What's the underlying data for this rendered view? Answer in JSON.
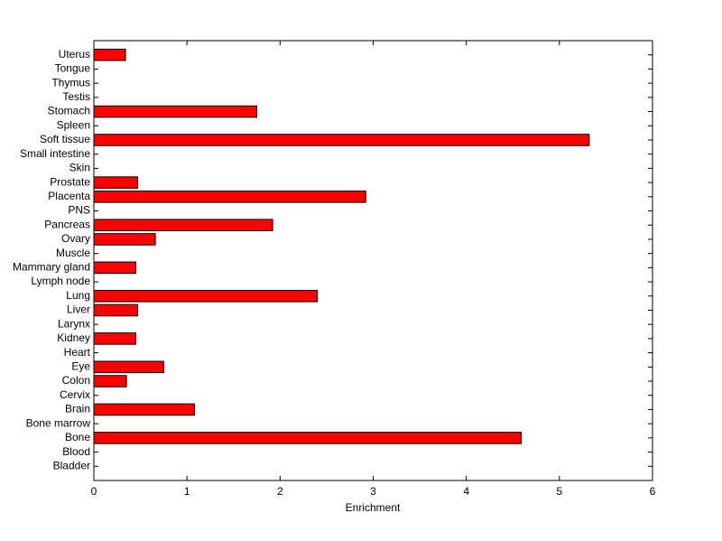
{
  "chart_data": {
    "type": "barh",
    "xlabel": "Enrichment",
    "categories": [
      "Bladder",
      "Blood",
      "Bone",
      "Bone marrow",
      "Brain",
      "Cervix",
      "Colon",
      "Eye",
      "Heart",
      "Kidney",
      "Larynx",
      "Liver",
      "Lung",
      "Lymph node",
      "Mammary gland",
      "Muscle",
      "Ovary",
      "Pancreas",
      "PNS",
      "Placenta",
      "Prostate",
      "Skin",
      "Small intestine",
      "Soft tissue",
      "Spleen",
      "Stomach",
      "Testis",
      "Thymus",
      "Tongue",
      "Uterus"
    ],
    "values": [
      0,
      0,
      4.59,
      0,
      1.08,
      0,
      0.35,
      0.75,
      0,
      0.45,
      0,
      0.47,
      2.4,
      0,
      0.45,
      0,
      0.66,
      1.92,
      0,
      2.92,
      0.47,
      0,
      0,
      5.32,
      0,
      1.75,
      0,
      0,
      0,
      0.34
    ],
    "color": "#ff0000",
    "xlim": [
      0,
      6
    ],
    "xticks": [
      0,
      1,
      2,
      3,
      4,
      5,
      6
    ]
  }
}
